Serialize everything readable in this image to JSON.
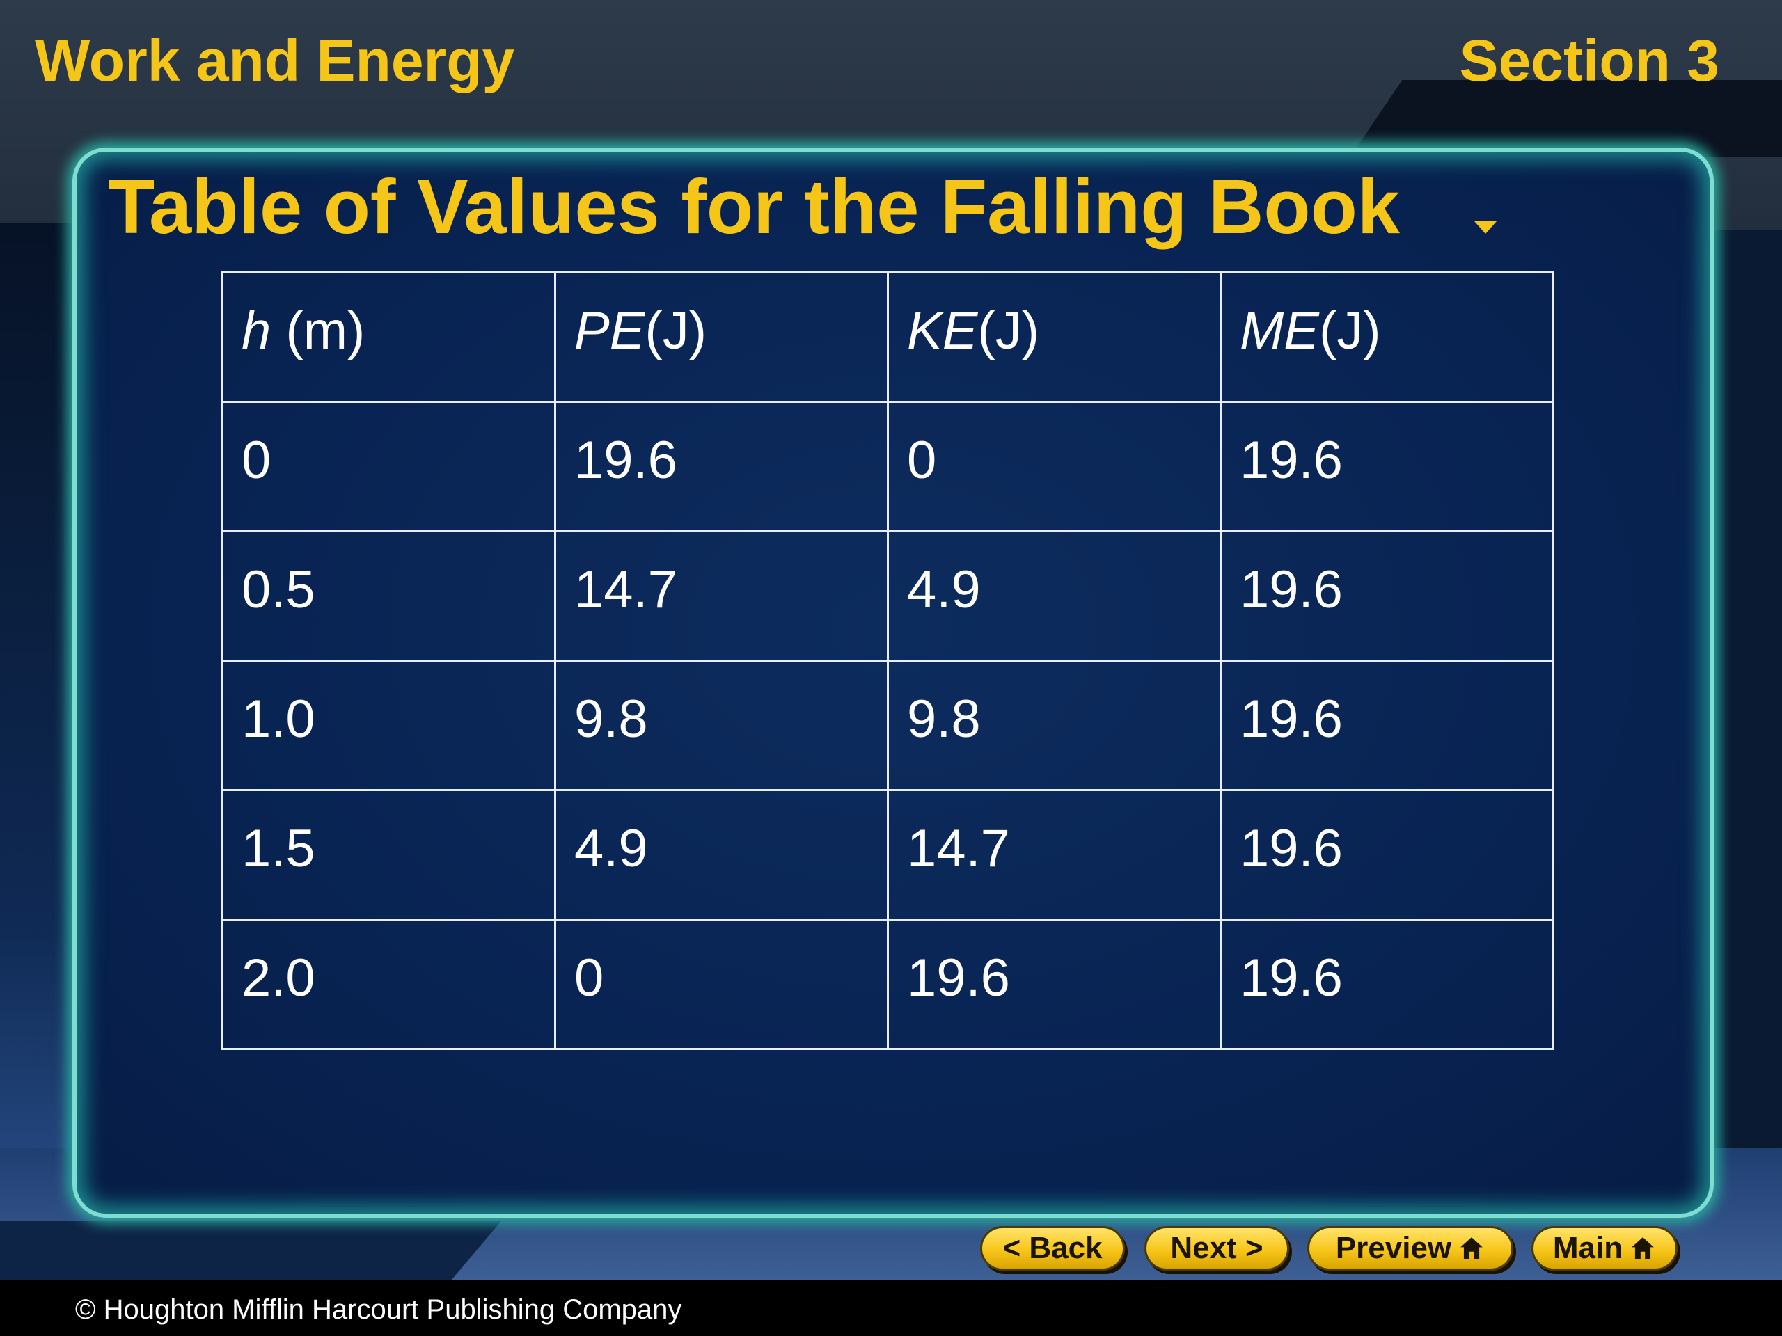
{
  "header": {
    "chapter_title": "Work and Energy",
    "section_label": "Section 3"
  },
  "slide": {
    "title": "Table of Values for the Falling Book"
  },
  "table": {
    "headers": [
      {
        "symbol": "h",
        "unit": " (m)"
      },
      {
        "symbol": "PE",
        "unit": "(J)"
      },
      {
        "symbol": "KE",
        "unit": "(J)"
      },
      {
        "symbol": "ME",
        "unit": "(J)"
      }
    ],
    "rows": [
      [
        "0",
        "19.6",
        "0",
        "19.6"
      ],
      [
        "0.5",
        "14.7",
        "4.9",
        "19.6"
      ],
      [
        "1.0",
        "9.8",
        "9.8",
        "19.6"
      ],
      [
        "1.5",
        "4.9",
        "14.7",
        "19.6"
      ],
      [
        "2.0",
        "0",
        "19.6",
        "19.6"
      ]
    ]
  },
  "nav": {
    "back_label": "< Back",
    "next_label": "Next >",
    "preview_label": "Preview",
    "main_label": "Main",
    "home_icon": "home-icon"
  },
  "footer": {
    "copyright": "© Houghton Mifflin Harcourt Publishing Company"
  }
}
